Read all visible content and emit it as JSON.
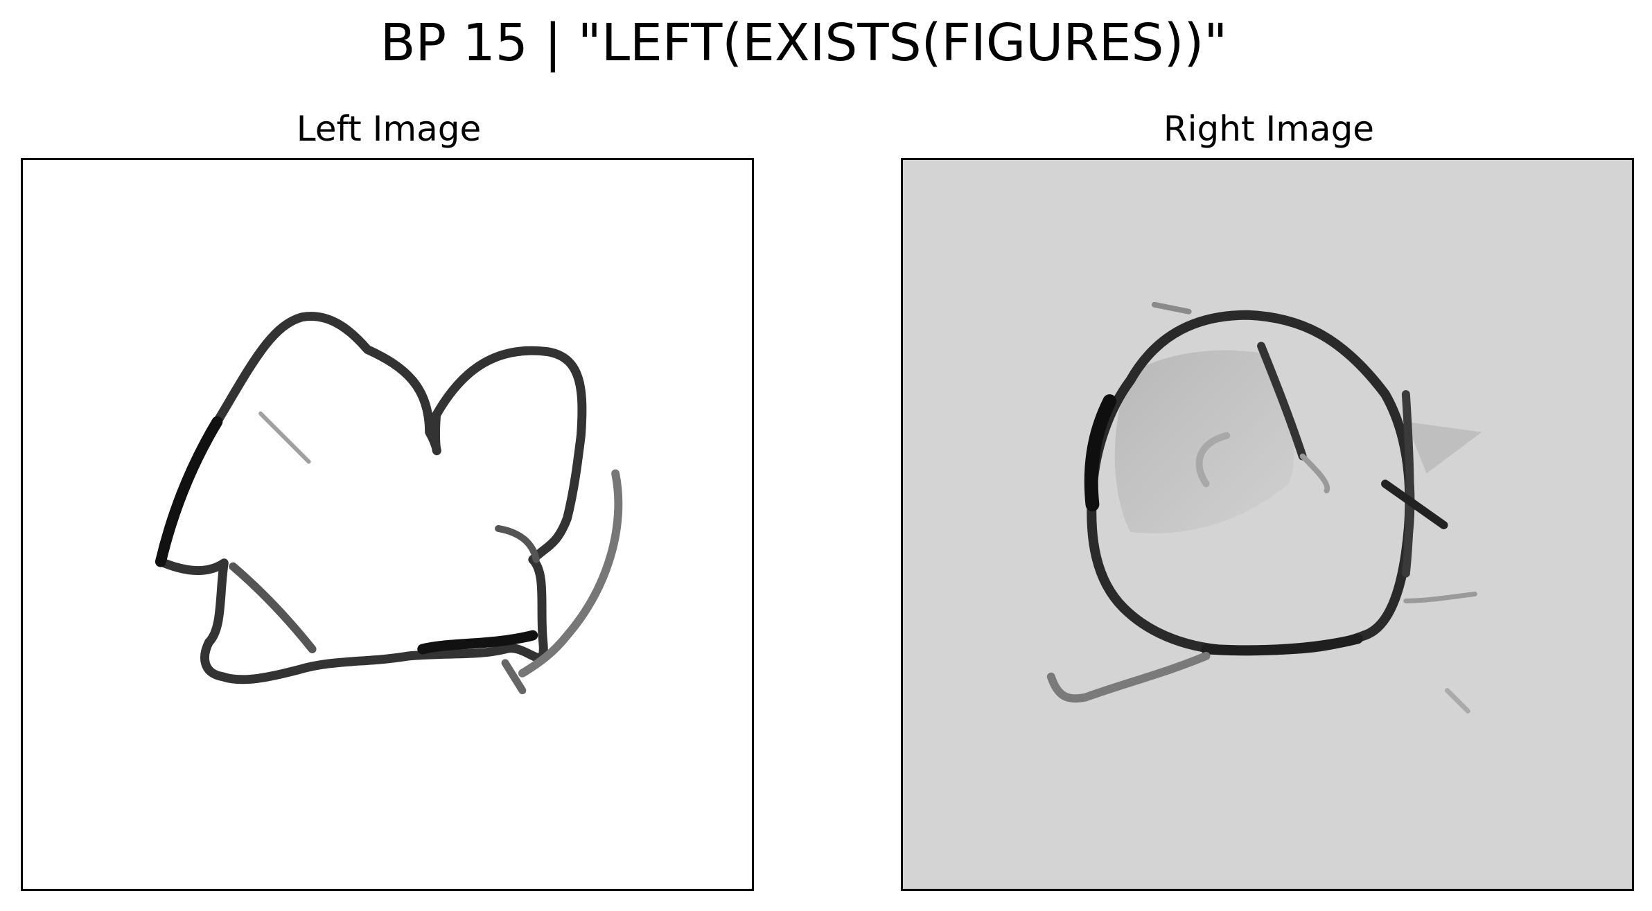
{
  "figure": {
    "title": "BP 15 | \"LEFT(EXISTS(FIGURES))\""
  },
  "panels": [
    {
      "title": "Left Image",
      "background": "#ffffff",
      "content": "bongard-sketch"
    },
    {
      "title": "Right Image",
      "background": "#d4d4d4",
      "content": "bongard-sketch"
    }
  ],
  "colors": {
    "stroke_dark": "#1a1a1a",
    "stroke_mid": "#555555",
    "stroke_light": "#9a9a9a",
    "shade": "#b8b8b8"
  }
}
